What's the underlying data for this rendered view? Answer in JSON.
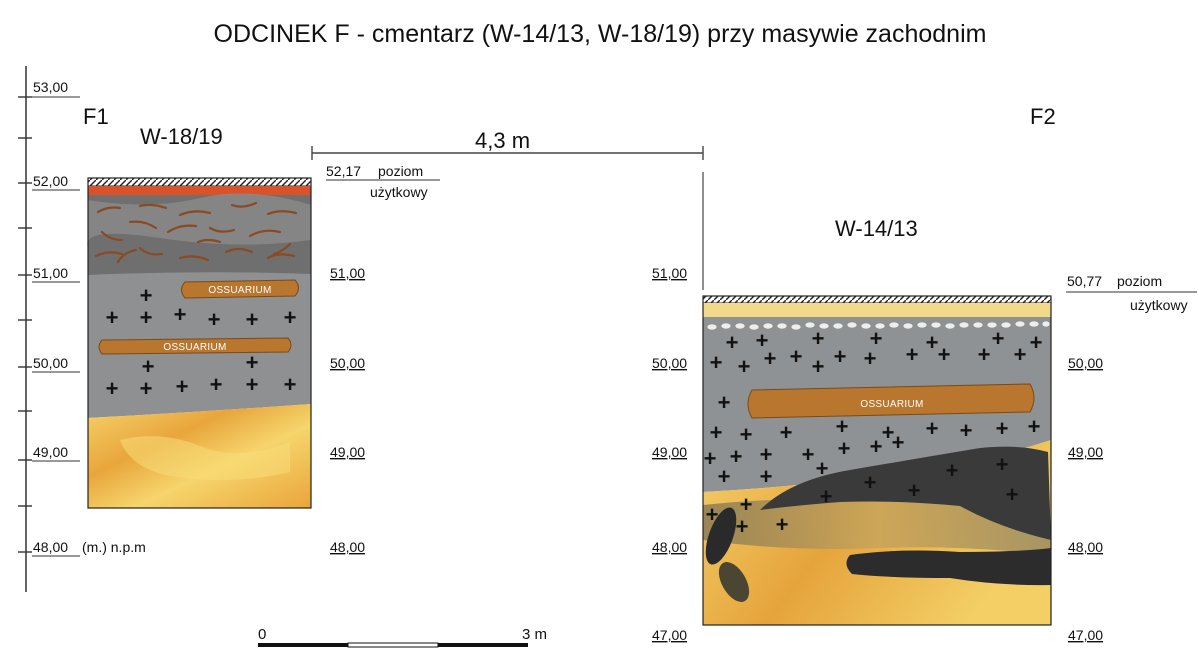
{
  "title": "ODCINEK F - cmentarz (W-14/13, W-18/19) przy masywie zachodnim",
  "profiles": {
    "f1": {
      "marker": "F1",
      "name": "W-18/19"
    },
    "f2": {
      "marker": "F2",
      "name": "W-14/13"
    }
  },
  "distance_label": "4,3 m",
  "left_scale": {
    "levels": [
      "53,00",
      "52,00",
      "51,00",
      "50,00",
      "49,00",
      "48,00"
    ],
    "unit_note": "(m.) n.p.m"
  },
  "f1_right_levels": [
    "51,00",
    "50,00",
    "49,00",
    "48,00"
  ],
  "f1_usable": {
    "value": "52,17",
    "word1": "poziom",
    "word2": "użytkowy"
  },
  "f2_left_levels": [
    "51,00",
    "50,00",
    "49,00",
    "48,00",
    "47,00"
  ],
  "f2_right_levels": [
    "50,00",
    "49,00",
    "48,00",
    "47,00"
  ],
  "f2_usable": {
    "value": "50,77",
    "word1": "poziom",
    "word2": "użytkowy"
  },
  "ossuarium_label": "OSSUARIUM",
  "scale_bar": {
    "start": "0",
    "end": "3 m"
  },
  "colors": {
    "grey_layer": "#8f9294",
    "dark_layer": "#3a3a3a",
    "yellow_layer": "#f2c04c",
    "ossuarium": "#b8762e",
    "brick": "#d9522a"
  }
}
